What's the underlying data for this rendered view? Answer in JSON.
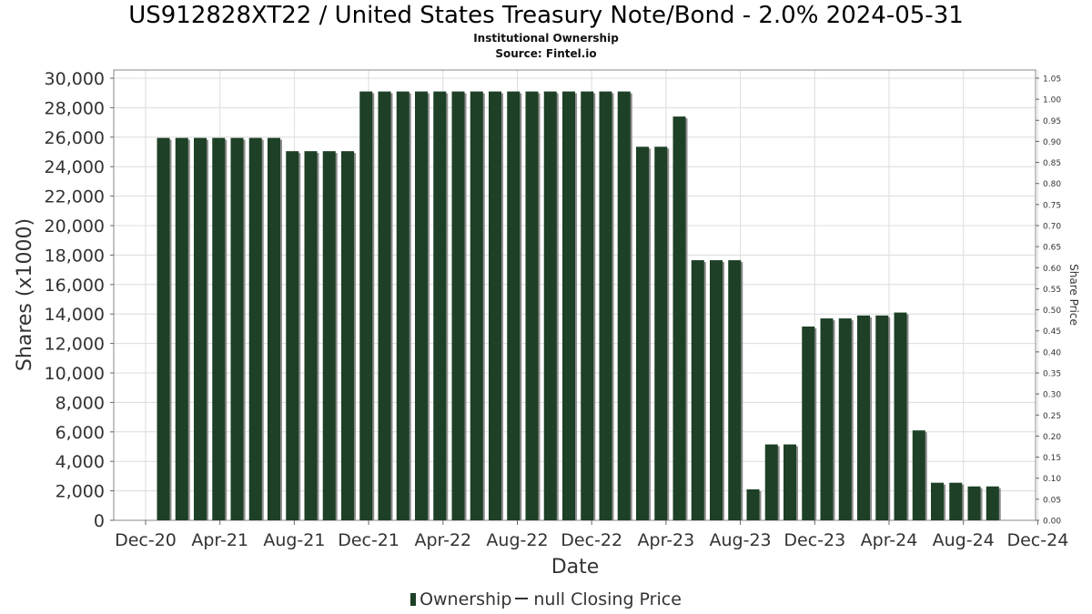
{
  "header": {
    "title": "US912828XT22 / United States Treasury Note/Bond - 2.0% 2024-05-31",
    "subtitle": "Institutional Ownership",
    "source": "Source: Fintel.io"
  },
  "legend": {
    "ownership": "Ownership",
    "price": "null Closing Price"
  },
  "colors": {
    "bar": "#1d4026",
    "bar_shadow": "#8c8c8c",
    "grid": "#dcdcdc",
    "axis": "#666666"
  },
  "chart_data": {
    "type": "bar",
    "title": "US912828XT22 / United States Treasury Note/Bond - 2.0% 2024-05-31",
    "subtitle": "Institutional Ownership",
    "xlabel": "Date",
    "ylabel": "Shares (x1000)",
    "y2label": "Share Price",
    "ylim": [
      0,
      30000
    ],
    "y2lim": [
      0,
      1.05
    ],
    "yticks": [
      "0",
      "2,000",
      "4,000",
      "6,000",
      "8,000",
      "10,000",
      "12,000",
      "14,000",
      "16,000",
      "18,000",
      "20,000",
      "22,000",
      "24,000",
      "26,000",
      "28,000",
      "30,000"
    ],
    "y2ticks": [
      "0.00",
      "0.05",
      "0.10",
      "0.15",
      "0.20",
      "0.25",
      "0.30",
      "0.35",
      "0.40",
      "0.45",
      "0.50",
      "0.55",
      "0.60",
      "0.65",
      "0.70",
      "0.75",
      "0.80",
      "0.85",
      "0.90",
      "0.95",
      "1.00",
      "1.05"
    ],
    "xticks": [
      "Dec-20",
      "Apr-21",
      "Aug-21",
      "Dec-21",
      "Apr-22",
      "Aug-22",
      "Dec-22",
      "Apr-23",
      "Aug-23",
      "Dec-23",
      "Apr-24",
      "Aug-24",
      "Dec-24"
    ],
    "grid": true,
    "legend_position": "bottom",
    "series": [
      {
        "name": "Ownership",
        "values": [
          25950,
          25950,
          25950,
          25950,
          25950,
          25950,
          25950,
          25050,
          25050,
          25050,
          25050,
          29100,
          29100,
          29100,
          29100,
          29100,
          29100,
          29100,
          29100,
          29100,
          29100,
          29100,
          29100,
          29100,
          29100,
          29100,
          25350,
          25350,
          27400,
          17650,
          17650,
          17650,
          2100,
          5150,
          5150,
          13150,
          13700,
          13700,
          13900,
          13900,
          14100,
          6100,
          2550,
          2550,
          2300,
          2300
        ]
      }
    ]
  }
}
